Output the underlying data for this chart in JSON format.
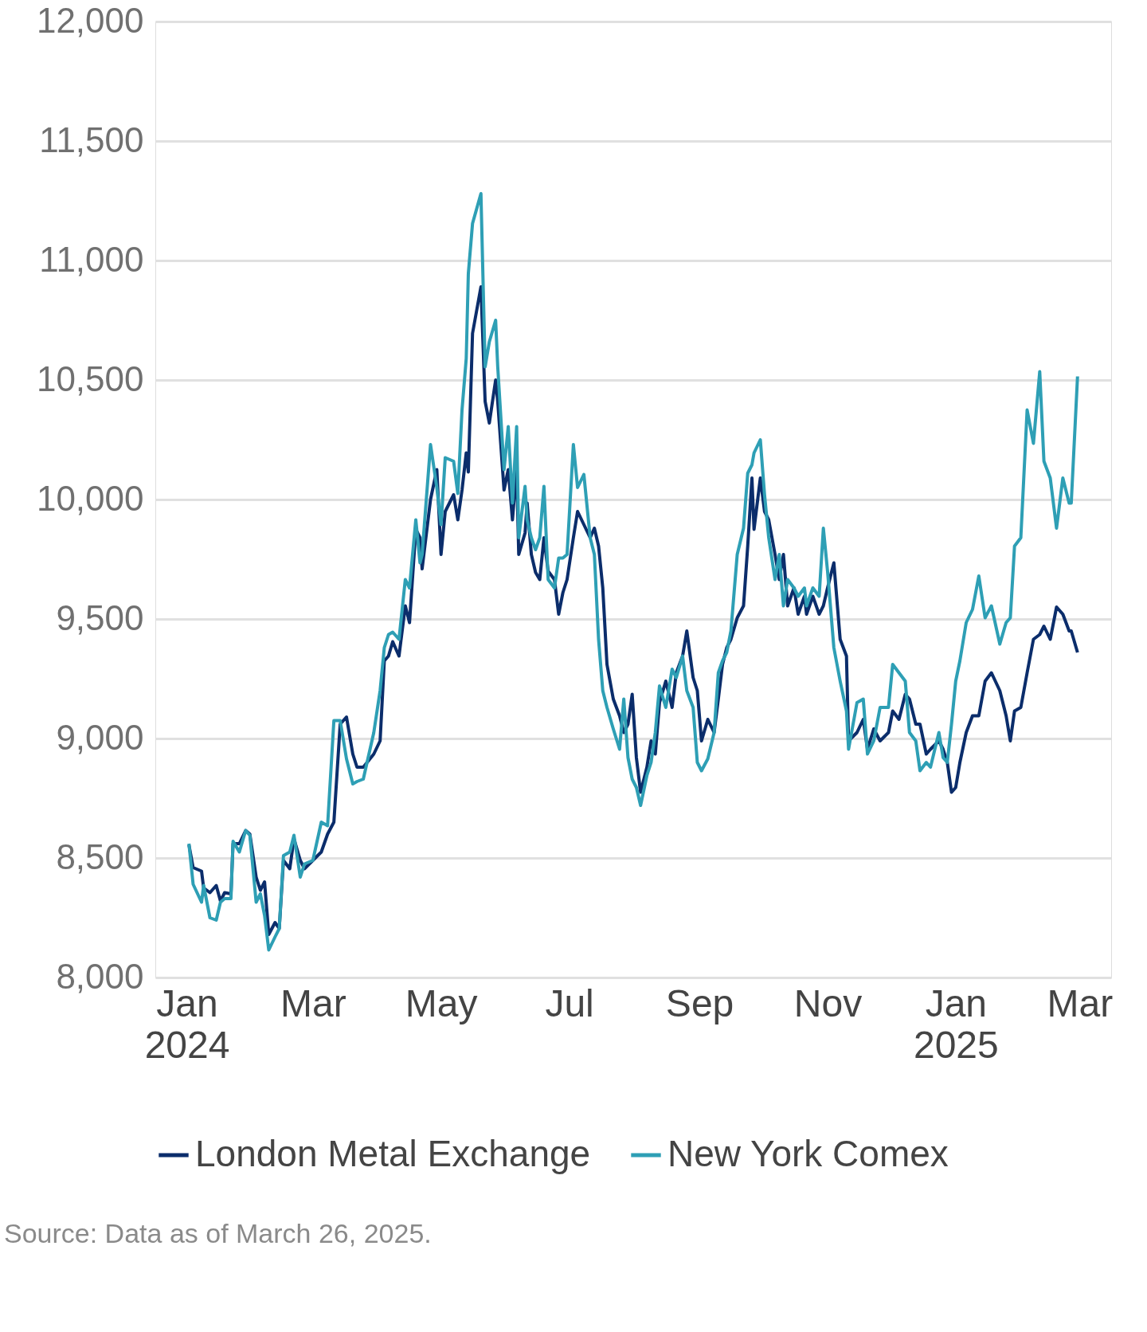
{
  "chart_data": {
    "type": "line",
    "x": [
      "2024-01-02",
      "2024-01-04",
      "2024-01-08",
      "2024-01-09",
      "2024-01-12",
      "2024-01-15",
      "2024-01-17",
      "2024-01-19",
      "2024-01-22",
      "2024-01-23",
      "2024-01-26",
      "2024-01-29",
      "2024-01-31",
      "2024-02-03",
      "2024-02-05",
      "2024-02-07",
      "2024-02-09",
      "2024-02-12",
      "2024-02-14",
      "2024-02-16",
      "2024-02-19",
      "2024-02-21",
      "2024-02-24",
      "2024-02-26",
      "2024-03-01",
      "2024-03-05",
      "2024-03-08",
      "2024-03-11",
      "2024-03-14",
      "2024-03-17",
      "2024-03-20",
      "2024-03-22",
      "2024-03-25",
      "2024-03-30",
      "2024-04-02",
      "2024-04-04",
      "2024-04-06",
      "2024-04-08",
      "2024-04-11",
      "2024-04-14",
      "2024-04-16",
      "2024-04-19",
      "2024-04-21",
      "2024-04-22",
      "2024-04-26",
      "2024-04-29",
      "2024-05-01",
      "2024-05-03",
      "2024-05-07",
      "2024-05-09",
      "2024-05-11",
      "2024-05-13",
      "2024-05-14",
      "2024-05-16",
      "2024-05-20",
      "2024-05-22",
      "2024-05-24",
      "2024-05-27",
      "2024-05-28",
      "2024-05-31",
      "2024-06-02",
      "2024-06-04",
      "2024-06-06",
      "2024-06-07",
      "2024-06-10",
      "2024-06-11",
      "2024-06-13",
      "2024-06-15",
      "2024-06-17",
      "2024-06-19",
      "2024-06-21",
      "2024-06-24",
      "2024-06-26",
      "2024-06-28",
      "2024-06-30",
      "2024-07-03",
      "2024-07-05",
      "2024-07-08",
      "2024-07-11",
      "2024-07-13",
      "2024-07-15",
      "2024-07-17",
      "2024-07-19",
      "2024-07-22",
      "2024-07-25",
      "2024-07-27",
      "2024-07-29",
      "2024-07-31",
      "2024-08-02",
      "2024-08-04",
      "2024-08-07",
      "2024-08-09",
      "2024-08-11",
      "2024-08-13",
      "2024-08-16",
      "2024-08-19",
      "2024-08-21",
      "2024-08-24",
      "2024-08-26",
      "2024-08-29",
      "2024-08-31",
      "2024-09-02",
      "2024-09-05",
      "2024-09-08",
      "2024-09-10",
      "2024-09-12",
      "2024-09-14",
      "2024-09-16",
      "2024-09-19",
      "2024-09-22",
      "2024-09-24",
      "2024-09-26",
      "2024-09-27",
      "2024-09-30",
      "2024-10-02",
      "2024-10-04",
      "2024-10-07",
      "2024-10-09",
      "2024-10-11",
      "2024-10-13",
      "2024-10-16",
      "2024-10-18",
      "2024-10-21",
      "2024-10-22",
      "2024-10-25",
      "2024-10-28",
      "2024-10-30",
      "2024-11-01",
      "2024-11-04",
      "2024-11-07",
      "2024-11-10",
      "2024-11-11",
      "2024-11-15",
      "2024-11-18",
      "2024-11-20",
      "2024-11-23",
      "2024-11-26",
      "2024-11-30",
      "2024-12-02",
      "2024-12-05",
      "2024-12-08",
      "2024-12-10",
      "2024-12-13",
      "2024-12-15",
      "2024-12-18",
      "2024-12-20",
      "2024-12-24",
      "2024-12-26",
      "2024-12-28",
      "2024-12-30",
      "2025-01-01",
      "2025-01-03",
      "2025-01-06",
      "2025-01-09",
      "2025-01-12",
      "2025-01-15",
      "2025-01-18",
      "2025-01-22",
      "2025-01-25",
      "2025-01-27",
      "2025-01-29",
      "2025-02-01",
      "2025-02-04",
      "2025-02-07",
      "2025-02-10",
      "2025-02-12",
      "2025-02-15",
      "2025-02-18",
      "2025-02-21",
      "2025-02-24",
      "2025-02-25",
      "2025-02-28"
    ],
    "series": [
      {
        "name": "London Metal Exchange",
        "color": "#0b2d6b",
        "values": [
          8555,
          8460,
          8445,
          8375,
          8355,
          8385,
          8320,
          8355,
          8350,
          8560,
          8560,
          8615,
          8600,
          8420,
          8365,
          8400,
          8180,
          8230,
          8205,
          8490,
          8455,
          8580,
          8490,
          8455,
          8490,
          8525,
          8600,
          8650,
          9060,
          9090,
          8935,
          8880,
          8880,
          8935,
          8990,
          9325,
          9345,
          9405,
          9345,
          9555,
          9485,
          9875,
          9840,
          9710,
          10000,
          10125,
          9770,
          9950,
          10020,
          9915,
          10040,
          10195,
          10115,
          10695,
          10890,
          10410,
          10320,
          10500,
          10410,
          10040,
          10125,
          9915,
          10130,
          9770,
          9860,
          9985,
          9770,
          9695,
          9665,
          9840,
          9700,
          9665,
          9520,
          9610,
          9665,
          9840,
          9950,
          9895,
          9840,
          9880,
          9805,
          9630,
          9310,
          9165,
          9095,
          9025,
          9060,
          9185,
          8920,
          8775,
          8880,
          8990,
          8935,
          9150,
          9240,
          9130,
          9275,
          9345,
          9450,
          9255,
          9200,
          8990,
          9080,
          9025,
          9165,
          9310,
          9380,
          9415,
          9505,
          9555,
          9805,
          10090,
          9875,
          10090,
          9950,
          9915,
          9770,
          9665,
          9770,
          9555,
          9630,
          9520,
          9595,
          9520,
          9595,
          9520,
          9555,
          9630,
          9735,
          9415,
          9345,
          8990,
          9025,
          9080,
          8955,
          9040,
          8990,
          9025,
          9115,
          9080,
          9185,
          9165,
          9060,
          9060,
          8935,
          8955,
          8990,
          8955,
          8900,
          8775,
          8795,
          8900,
          9025,
          9095,
          9095,
          9240,
          9275,
          9200,
          9095,
          8990,
          9115,
          9130,
          9275,
          9415,
          9435,
          9470,
          9415,
          9550,
          9520,
          9450,
          9450,
          9360
        ]
      },
      {
        "name": "New York Comex",
        "color": "#2e9fb5",
        "values": [
          8560,
          8390,
          8315,
          8385,
          8250,
          8240,
          8315,
          8330,
          8330,
          8570,
          8525,
          8615,
          8595,
          8315,
          8350,
          8260,
          8115,
          8170,
          8205,
          8510,
          8525,
          8595,
          8420,
          8475,
          8490,
          8650,
          8635,
          9075,
          9075,
          8915,
          8810,
          8820,
          8830,
          9025,
          9200,
          9380,
          9435,
          9445,
          9415,
          9665,
          9630,
          9915,
          9735,
          9770,
          10230,
          10050,
          9895,
          10175,
          10160,
          10025,
          10375,
          10590,
          10945,
          11155,
          11280,
          10555,
          10660,
          10750,
          10555,
          10125,
          10305,
          9985,
          10305,
          9840,
          10055,
          9915,
          9840,
          9790,
          9840,
          10055,
          9665,
          9630,
          9755,
          9755,
          9770,
          10230,
          10050,
          10105,
          9840,
          9770,
          9415,
          9200,
          9130,
          9040,
          8955,
          9165,
          8920,
          8830,
          8795,
          8720,
          8845,
          8900,
          9025,
          9220,
          9130,
          9290,
          9255,
          9345,
          9200,
          9130,
          8900,
          8865,
          8915,
          9025,
          9275,
          9325,
          9360,
          9450,
          9770,
          9880,
          10110,
          10145,
          10195,
          10250,
          10020,
          9840,
          9665,
          9770,
          9555,
          9665,
          9630,
          9595,
          9630,
          9555,
          9630,
          9595,
          9880,
          9700,
          9380,
          9240,
          9115,
          8955,
          9150,
          9165,
          8935,
          8990,
          9130,
          9130,
          9310,
          9275,
          9240,
          9025,
          8990,
          8865,
          8900,
          8880,
          9025,
          8920,
          8900,
          9060,
          9240,
          9325,
          9485,
          9540,
          9680,
          9505,
          9555,
          9395,
          9485,
          9505,
          9805,
          9840,
          10375,
          10235,
          10535,
          10160,
          10090,
          9880,
          10090,
          9985,
          9985,
          10515
        ]
      }
    ],
    "ylim": [
      8000,
      12000
    ],
    "yticks": [
      {
        "value": 8000,
        "label": "8,000"
      },
      {
        "value": 8500,
        "label": "8,500"
      },
      {
        "value": 9000,
        "label": "9,000"
      },
      {
        "value": 9500,
        "label": "9,500"
      },
      {
        "value": 10000,
        "label": "10,000"
      },
      {
        "value": 10500,
        "label": "10,500"
      },
      {
        "value": 11000,
        "label": "11,000"
      },
      {
        "value": 11500,
        "label": "11,500"
      },
      {
        "value": 12000,
        "label": "12,000"
      }
    ],
    "xlim": [
      "2023-12-17",
      "2025-03-16"
    ],
    "xticks": [
      {
        "value": "2024-01-01",
        "label": "Jan 2024"
      },
      {
        "value": "2024-03-01",
        "label": "Mar"
      },
      {
        "value": "2024-05-01",
        "label": "May"
      },
      {
        "value": "2024-07-01",
        "label": "Jul"
      },
      {
        "value": "2024-09-01",
        "label": "Sep"
      },
      {
        "value": "2024-11-01",
        "label": "Nov"
      },
      {
        "value": "2025-01-01",
        "label": "Jan 2025"
      },
      {
        "value": "2025-03-01",
        "label": "Mar"
      }
    ],
    "grid": "y",
    "legend": "bottom",
    "line_style": "solid",
    "marker": "none",
    "annotations": [
      "Source: Data as of March 26, 2025."
    ]
  }
}
